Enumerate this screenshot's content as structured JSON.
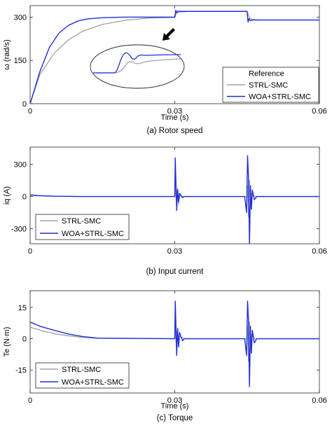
{
  "colors": {
    "reference": "#000000",
    "strl": "#a0a0a0",
    "woa": "#1f2fd8"
  },
  "chart_data": [
    {
      "type": "line",
      "caption": "(a) Rotor speed",
      "xlabel": "Time (s)",
      "ylabel": "ω (rad/s)",
      "xlim": [
        0,
        0.06
      ],
      "ylim": [
        0,
        340
      ],
      "xticks": [
        0,
        0.03,
        0.06
      ],
      "xtick_labels": [
        "0",
        "0.03",
        "0.06"
      ],
      "yticks": [
        0,
        150,
        300
      ],
      "ytick_labels": [
        "0",
        "150",
        "300"
      ],
      "legend_position": "bottom-right",
      "inset": "zoomed view of the speed step at t = 0.03 s (ellipse with arrow)",
      "series": [
        {
          "name": "Reference",
          "key": "ref",
          "x": [
            0,
            0.03,
            0.03,
            0.045,
            0.045,
            0.06
          ],
          "values": [
            300,
            300,
            320,
            320,
            290,
            290
          ]
        },
        {
          "name": "STRL-SMC",
          "key": "strl",
          "x": [
            0,
            0.002,
            0.005,
            0.008,
            0.011,
            0.015,
            0.02,
            0.025,
            0.03,
            0.0303,
            0.031,
            0.033,
            0.045,
            0.0455,
            0.046,
            0.048,
            0.06
          ],
          "values": [
            0,
            100,
            175,
            222,
            252,
            275,
            290,
            297,
            299,
            312,
            318,
            320,
            320,
            298,
            292,
            290,
            290
          ]
        },
        {
          "name": "WOA+STRL-SMC",
          "key": "woa",
          "x": [
            0,
            0.002,
            0.004,
            0.006,
            0.008,
            0.01,
            0.012,
            0.015,
            0.018,
            0.02,
            0.03,
            0.0302,
            0.0304,
            0.0306,
            0.031,
            0.045,
            0.0452,
            0.0454,
            0.0456,
            0.046,
            0.06
          ],
          "values": [
            0,
            110,
            195,
            245,
            272,
            287,
            294,
            298,
            299.5,
            300,
            300,
            324,
            315,
            321,
            320,
            320,
            283,
            295,
            288,
            290,
            290
          ]
        }
      ]
    },
    {
      "type": "line",
      "caption": "(b) Input current",
      "xlabel": "",
      "ylabel": "iq (A)",
      "xlim": [
        0,
        0.06
      ],
      "ylim": [
        -440,
        460
      ],
      "xticks": [
        0,
        0.03,
        0.06
      ],
      "xtick_labels": [
        "0",
        "0.03",
        "0.06"
      ],
      "yticks": [
        -300,
        0,
        300
      ],
      "ytick_labels": [
        "-300",
        "0",
        "300"
      ],
      "legend_position": "bottom-left",
      "series": [
        {
          "name": "STRL-SMC",
          "key": "strl",
          "x": [
            0,
            0.003,
            0.006,
            0.01,
            0.03,
            0.0301,
            0.0303,
            0.0305,
            0.0308,
            0.031,
            0.0315,
            0.045,
            0.0451,
            0.0453,
            0.0455,
            0.0458,
            0.046,
            0.0465,
            0.06
          ],
          "values": [
            10,
            4,
            2,
            0,
            0,
            120,
            -40,
            60,
            -70,
            10,
            0,
            0,
            100,
            -190,
            150,
            -110,
            30,
            0,
            0
          ]
        },
        {
          "name": "WOA+STRL-SMC",
          "key": "woa",
          "x": [
            0,
            0.002,
            0.005,
            0.01,
            0.03,
            0.0301,
            0.0302,
            0.0304,
            0.0306,
            0.0308,
            0.031,
            0.0313,
            0.0316,
            0.032,
            0.0445,
            0.0449,
            0.0451,
            0.0453,
            0.0455,
            0.0457,
            0.0459,
            0.0461,
            0.0465,
            0.047,
            0.06
          ],
          "values": [
            15,
            8,
            3,
            0,
            0,
            360,
            200,
            -130,
            70,
            -50,
            30,
            10,
            -10,
            0,
            0,
            -150,
            380,
            180,
            -450,
            100,
            -120,
            60,
            -30,
            0,
            0
          ]
        }
      ]
    },
    {
      "type": "line",
      "caption": "(c) Torque",
      "xlabel": "Time (s)",
      "ylabel": "Te (N·m)",
      "xlim": [
        0,
        0.06
      ],
      "ylim": [
        -26,
        23
      ],
      "xticks": [
        0,
        0.03,
        0.06
      ],
      "xtick_labels": [
        "0",
        "0.03",
        "0.06"
      ],
      "yticks": [
        -15,
        0,
        15
      ],
      "ytick_labels": [
        "-15",
        "0",
        "15"
      ],
      "legend_position": "bottom-left",
      "series": [
        {
          "name": "STRL-SMC",
          "key": "strl",
          "x": [
            0,
            0.003,
            0.006,
            0.01,
            0.014,
            0.03,
            0.0301,
            0.0303,
            0.0305,
            0.0308,
            0.031,
            0.032,
            0.045,
            0.0451,
            0.0453,
            0.0455,
            0.0458,
            0.046,
            0.0465,
            0.06
          ],
          "values": [
            5.5,
            3.5,
            2,
            0.8,
            0.2,
            0,
            7,
            -3,
            4,
            -3,
            1,
            0,
            0,
            6,
            -11,
            8,
            -6,
            2,
            0,
            0
          ]
        },
        {
          "name": "WOA+STRL-SMC",
          "key": "woa",
          "x": [
            0,
            0.002,
            0.005,
            0.008,
            0.011,
            0.014,
            0.03,
            0.0301,
            0.0302,
            0.0304,
            0.0306,
            0.0308,
            0.031,
            0.0313,
            0.0316,
            0.032,
            0.0445,
            0.0449,
            0.0451,
            0.0453,
            0.0455,
            0.0457,
            0.0459,
            0.0461,
            0.0465,
            0.047,
            0.06
          ],
          "values": [
            8,
            6,
            4,
            2.2,
            1,
            0.3,
            0,
            18,
            10,
            -8,
            5,
            -4,
            3,
            1,
            -1,
            0,
            0,
            -8,
            18,
            9,
            -23,
            6,
            -7,
            4,
            -2,
            0,
            0
          ]
        }
      ]
    }
  ]
}
